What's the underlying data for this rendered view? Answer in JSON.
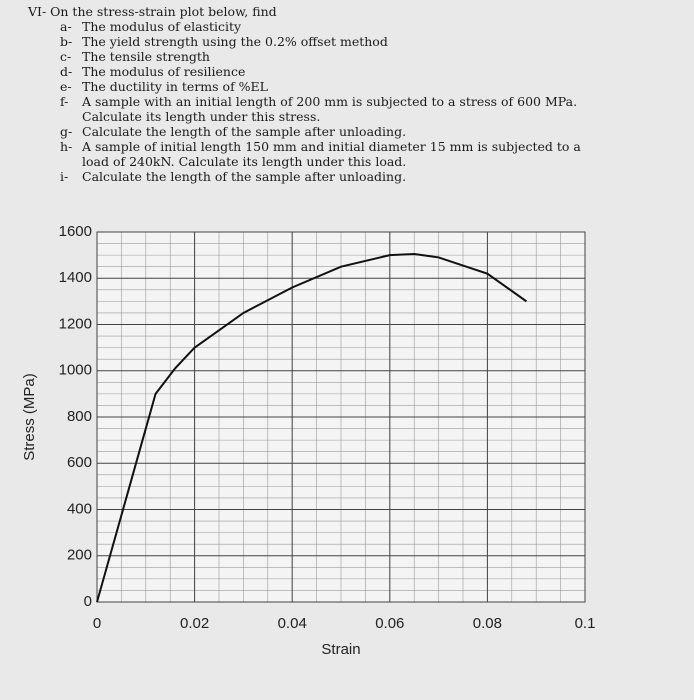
{
  "heading": "VI- On the stress-strain plot below, find",
  "questions": [
    {
      "label": "a-",
      "text": "The modulus of elasticity"
    },
    {
      "label": "b-",
      "text": "The yield strength using the 0.2% offset method"
    },
    {
      "label": "c-",
      "text": "The tensile strength"
    },
    {
      "label": "d-",
      "text": "The modulus of resilience"
    },
    {
      "label": "e-",
      "text": "The ductility in terms of %EL"
    },
    {
      "label": "f-",
      "text": "A sample with an initial length of 200 mm is subjected to a stress of 600 MPa. Calculate its length under this stress."
    },
    {
      "label": "g-",
      "text": "Calculate the length of the sample after unloading."
    },
    {
      "label": "h-",
      "text": "A sample of initial length 150 mm and initial diameter 15 mm is subjected to a load of 240kN. Calculate its length under this load."
    },
    {
      "label": "i-",
      "text": "Calculate the length of the sample after unloading."
    }
  ],
  "chart_data": {
    "type": "line",
    "x_label": "Strain",
    "y_label": "Stress (MPa)",
    "x": [
      0,
      0.012,
      0.016,
      0.02,
      0.03,
      0.04,
      0.05,
      0.06,
      0.065,
      0.07,
      0.08,
      0.088
    ],
    "values": [
      0,
      900,
      1010,
      1100,
      1250,
      1360,
      1450,
      1500,
      1505,
      1490,
      1420,
      1300
    ],
    "color": "#111111",
    "xlim": [
      0,
      0.1
    ],
    "xticks": [
      0,
      0.02,
      0.04,
      0.06,
      0.08,
      0.1
    ],
    "ylim": [
      0,
      1600
    ],
    "yticks": [
      0,
      200,
      400,
      600,
      800,
      1000,
      1200,
      1400,
      1600
    ],
    "grid": true
  }
}
